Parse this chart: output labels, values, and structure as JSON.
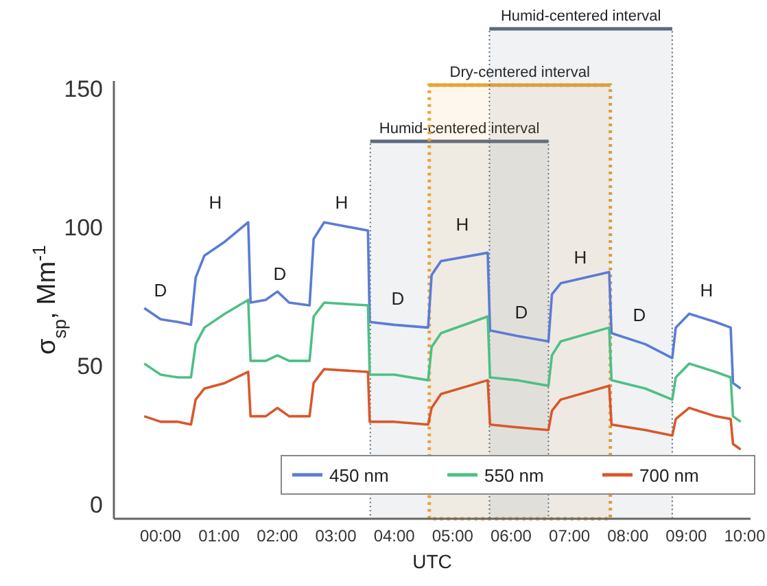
{
  "chart_data": {
    "type": "line",
    "xlabel": "UTC",
    "ylabel": "σ$_{sp}$, Mm$^{-1}$",
    "x": [
      -0.28,
      0.0,
      0.3,
      0.52,
      0.6,
      0.75,
      1.1,
      1.5,
      1.54,
      1.8,
      2.0,
      2.2,
      2.55,
      2.62,
      2.8,
      3.55,
      3.58,
      4.0,
      4.58,
      4.64,
      4.8,
      5.6,
      5.64,
      6.1,
      6.64,
      6.7,
      6.85,
      7.68,
      7.72,
      8.3,
      8.76,
      8.82,
      9.05,
      9.5,
      9.76,
      9.8,
      9.93
    ],
    "series": [
      {
        "name": "450 nm",
        "color": "#5b7bd5",
        "values": [
          71,
          67,
          66,
          65,
          82,
          90,
          95,
          102,
          73,
          74,
          77,
          73,
          72,
          96,
          102,
          99,
          66,
          65,
          64,
          83,
          88,
          91,
          63,
          61,
          59,
          76,
          80,
          84,
          62,
          58,
          53,
          64,
          69,
          66,
          64,
          44,
          42
        ]
      },
      {
        "name": "550 nm",
        "color": "#4fbf85",
        "values": [
          51,
          47,
          46,
          46,
          58,
          64,
          69,
          74,
          52,
          52,
          54,
          52,
          52,
          68,
          73,
          72,
          47,
          47,
          45,
          57,
          62,
          68,
          46,
          45,
          43,
          54,
          59,
          64,
          45,
          42,
          38,
          46,
          51,
          48,
          46,
          32,
          30
        ]
      },
      {
        "name": "700 nm",
        "color": "#d9572b",
        "values": [
          32,
          30,
          30,
          29,
          38,
          42,
          44,
          48,
          32,
          32,
          35,
          32,
          32,
          44,
          49,
          48,
          30,
          30,
          29,
          35,
          40,
          45,
          29,
          28,
          27,
          34,
          38,
          43,
          29,
          27,
          25,
          31,
          35,
          32,
          31,
          22,
          20
        ]
      }
    ],
    "xlim": [
      -0.8,
      10.1
    ],
    "ylim": [
      -5,
      153
    ],
    "xticks": [
      {
        "value": 0,
        "label": "00:00"
      },
      {
        "value": 1,
        "label": "01:00"
      },
      {
        "value": 2,
        "label": "02:00"
      },
      {
        "value": 3,
        "label": "03:00"
      },
      {
        "value": 4,
        "label": "04:00"
      },
      {
        "value": 5,
        "label": "05:00"
      },
      {
        "value": 6,
        "label": "06:00"
      },
      {
        "value": 7,
        "label": "07:00"
      },
      {
        "value": 8,
        "label": "08:00"
      },
      {
        "value": 9,
        "label": "09:00"
      },
      {
        "value": 10,
        "label": "10:00"
      }
    ],
    "yticks": [
      0,
      50,
      100,
      150
    ],
    "bands": [
      {
        "axis": "x",
        "from": 3.59,
        "to": 6.64,
        "label": "Humid-centered interval",
        "color": "#5c6a80"
      },
      {
        "axis": "x",
        "from": 4.6,
        "to": 7.7,
        "label": "Dry-centered interval",
        "color": "#e8a33a"
      },
      {
        "axis": "x",
        "from": 5.63,
        "to": 8.76,
        "label": "Humid-centered interval",
        "color": "#5c6a80"
      }
    ],
    "annotations": [
      "D",
      "H",
      "D",
      "H",
      "D",
      "H",
      "D",
      "H",
      "D",
      "H"
    ],
    "legend": "bottom",
    "grid": false,
    "marker": "none",
    "line_style": "solid"
  }
}
